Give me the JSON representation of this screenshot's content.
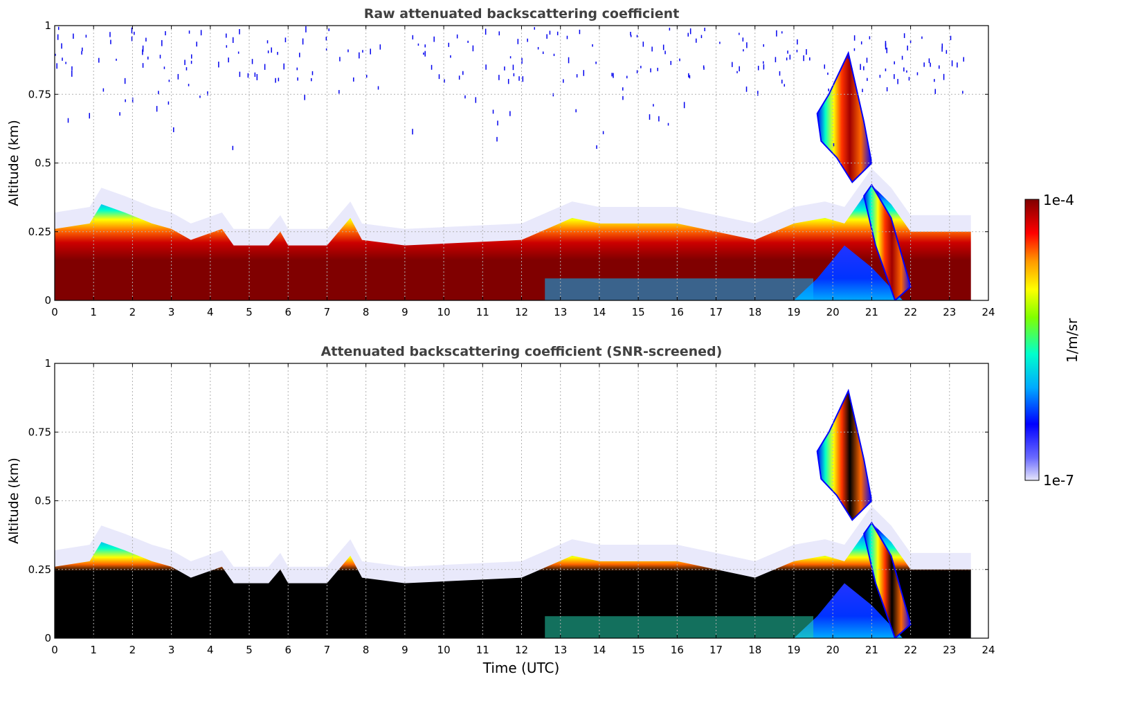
{
  "figure": {
    "colorbar": {
      "label": "1/m/sr",
      "max_label": "1e-4",
      "min_label": "1e-7",
      "scale": "log",
      "range": [
        1e-07,
        0.0001
      ],
      "colormap": [
        "#e6e6fa",
        "#0000ff",
        "#00c8ff",
        "#00ff80",
        "#ffff00",
        "#ff8000",
        "#ff0000",
        "#800000"
      ]
    },
    "xlabel": "Time (UTC)"
  },
  "chart_data": [
    {
      "type": "heatmap",
      "title": "Raw attenuated backscattering coefficient",
      "xlabel": "",
      "ylabel": "Altitude (km)",
      "xlim": [
        0,
        24
      ],
      "ylim": [
        0,
        1
      ],
      "x_ticks": [
        "0",
        "1",
        "2",
        "3",
        "4",
        "5",
        "6",
        "7",
        "8",
        "9",
        "10",
        "11",
        "12",
        "13",
        "14",
        "15",
        "16",
        "17",
        "18",
        "19",
        "20",
        "21",
        "22",
        "23",
        "24"
      ],
      "y_ticks": [
        "0",
        "0.25",
        "0.5",
        "0.75",
        "1"
      ],
      "grid": true,
      "data_extent_hours": [
        0,
        23.55
      ],
      "layer_top_km": [
        [
          0,
          0.26
        ],
        [
          0.9,
          0.28
        ],
        [
          1.2,
          0.35
        ],
        [
          1.8,
          0.32
        ],
        [
          2.5,
          0.28
        ],
        [
          3,
          0.26
        ],
        [
          3.5,
          0.22
        ],
        [
          4.3,
          0.26
        ],
        [
          4.6,
          0.2
        ],
        [
          5.5,
          0.2
        ],
        [
          5.8,
          0.25
        ],
        [
          6,
          0.2
        ],
        [
          7,
          0.2
        ],
        [
          7.6,
          0.3
        ],
        [
          7.9,
          0.22
        ],
        [
          9,
          0.2
        ],
        [
          12,
          0.22
        ],
        [
          13.3,
          0.3
        ],
        [
          14,
          0.28
        ],
        [
          16,
          0.28
        ],
        [
          17,
          0.25
        ],
        [
          18,
          0.22
        ],
        [
          19,
          0.28
        ],
        [
          19.8,
          0.3
        ],
        [
          20.3,
          0.28
        ],
        [
          21,
          0.42
        ],
        [
          21.5,
          0.35
        ],
        [
          22,
          0.25
        ],
        [
          23.55,
          0.25
        ]
      ],
      "cloud_features": [
        {
          "t_start": 19.6,
          "t_end": 21.0,
          "z_bottom_km": 0.43,
          "z_top_km": 0.9
        },
        {
          "t_start": 20.8,
          "t_end": 22.0,
          "z_bottom_km": 0.0,
          "z_top_km": 0.42
        }
      ]
    },
    {
      "type": "heatmap",
      "title": "Attenuated backscattering coefficient (SNR-screened)",
      "xlabel": "Time (UTC)",
      "ylabel": "Altitude (km)",
      "xlim": [
        0,
        24
      ],
      "ylim": [
        0,
        1
      ],
      "x_ticks": [
        "0",
        "1",
        "2",
        "3",
        "4",
        "5",
        "6",
        "7",
        "8",
        "9",
        "10",
        "11",
        "12",
        "13",
        "14",
        "15",
        "16",
        "17",
        "18",
        "19",
        "20",
        "21",
        "22",
        "23",
        "24"
      ],
      "y_ticks": [
        "0",
        "0.25",
        "0.5",
        "0.75",
        "1"
      ],
      "grid": true,
      "data_extent_hours": [
        0,
        23.55
      ],
      "layer_top_km": [
        [
          0,
          0.26
        ],
        [
          0.9,
          0.28
        ],
        [
          1.2,
          0.35
        ],
        [
          1.8,
          0.32
        ],
        [
          2.5,
          0.28
        ],
        [
          3,
          0.26
        ],
        [
          3.5,
          0.22
        ],
        [
          4.3,
          0.26
        ],
        [
          4.6,
          0.2
        ],
        [
          5.5,
          0.2
        ],
        [
          5.8,
          0.25
        ],
        [
          6,
          0.2
        ],
        [
          7,
          0.2
        ],
        [
          7.6,
          0.3
        ],
        [
          7.9,
          0.22
        ],
        [
          9,
          0.2
        ],
        [
          12,
          0.22
        ],
        [
          13.3,
          0.3
        ],
        [
          14,
          0.28
        ],
        [
          16,
          0.28
        ],
        [
          17,
          0.25
        ],
        [
          18,
          0.22
        ],
        [
          19,
          0.28
        ],
        [
          19.8,
          0.3
        ],
        [
          20.3,
          0.28
        ],
        [
          21,
          0.42
        ],
        [
          21.5,
          0.35
        ],
        [
          22,
          0.25
        ],
        [
          23.55,
          0.25
        ]
      ],
      "cloud_features": [
        {
          "t_start": 19.6,
          "t_end": 21.0,
          "z_bottom_km": 0.43,
          "z_top_km": 0.9
        },
        {
          "t_start": 20.8,
          "t_end": 22.0,
          "z_bottom_km": 0.0,
          "z_top_km": 0.42
        }
      ]
    }
  ]
}
